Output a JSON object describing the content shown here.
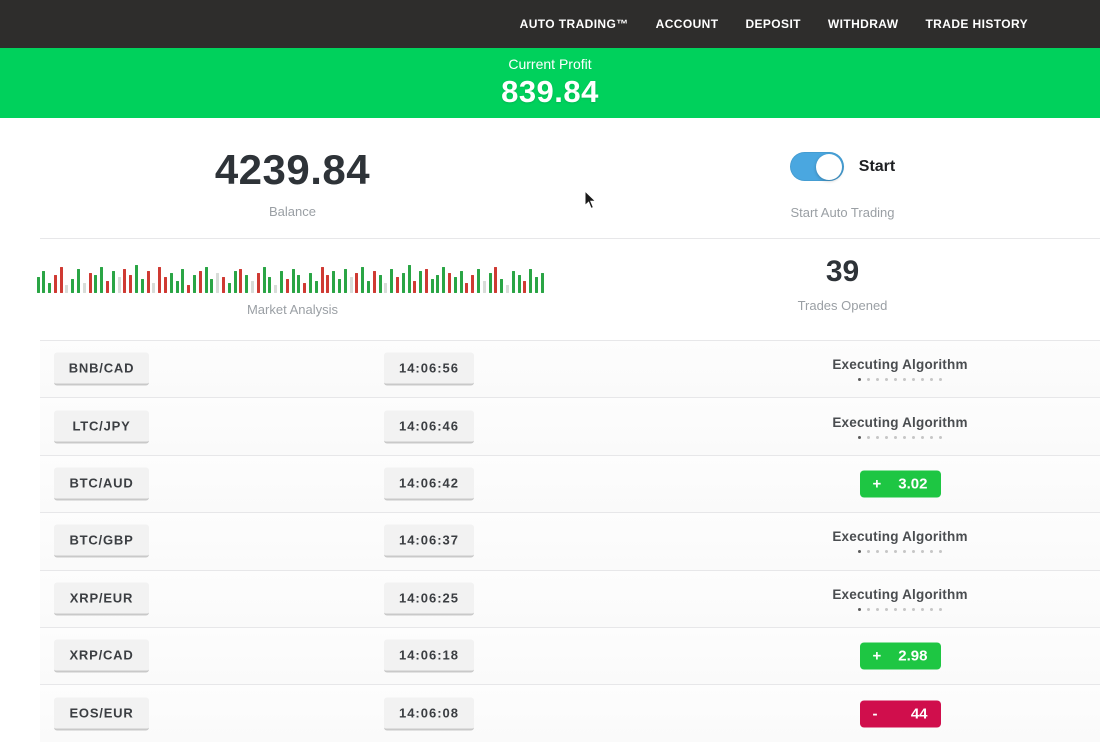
{
  "nav": {
    "items": [
      {
        "id": "auto-trading",
        "label": "AUTO TRADING™"
      },
      {
        "id": "account",
        "label": "ACCOUNT"
      },
      {
        "id": "deposit",
        "label": "DEPOSIT"
      },
      {
        "id": "withdraw",
        "label": "WITHDRAW"
      },
      {
        "id": "trade-history",
        "label": "TRADE HISTORY"
      }
    ]
  },
  "profit_banner": {
    "label": "Current Profit",
    "value": "839.84"
  },
  "stats": {
    "balance": {
      "value": "4239.84",
      "label": "Balance"
    },
    "auto_trading": {
      "toggle_on": true,
      "toggle_label": "Start",
      "label": "Start Auto Trading"
    },
    "market_analysis": {
      "label": "Market Analysis",
      "bars": [
        "g16",
        "g22",
        "g10",
        "r18",
        "r26",
        "l8",
        "g14",
        "g24",
        "l10",
        "r20",
        "g18",
        "g26",
        "r12",
        "g22",
        "l16",
        "r24",
        "r18",
        "g28",
        "g14",
        "r22",
        "l10",
        "r26",
        "r16",
        "g20",
        "g12",
        "g24",
        "r8",
        "g18",
        "r22",
        "g26",
        "g14",
        "l20",
        "r16",
        "g10",
        "g22",
        "r24",
        "g18",
        "l12",
        "r20",
        "g26",
        "g16",
        "l8",
        "g22",
        "r14",
        "g24",
        "g18",
        "r10",
        "g20",
        "g12",
        "r26",
        "r18",
        "g22",
        "g14",
        "g24",
        "l16",
        "r20",
        "g26",
        "g12",
        "r22",
        "g18",
        "l10",
        "g24",
        "r16",
        "g20",
        "g28",
        "r12",
        "g22",
        "r24",
        "g14",
        "g18",
        "g26",
        "r20",
        "g16",
        "g22",
        "r10",
        "r18",
        "g24",
        "l12",
        "g20",
        "r26",
        "g14",
        "l8",
        "g22",
        "g18",
        "r12",
        "g24",
        "g16",
        "g20"
      ]
    },
    "trades_opened": {
      "value": "39",
      "label": "Trades Opened"
    }
  },
  "trade_feed": {
    "executing_label": "Executing Algorithm",
    "executing_dots": 10,
    "rows": [
      {
        "pair": "BNB/CAD",
        "time": "14:06:56",
        "status": "executing"
      },
      {
        "pair": "LTC/JPY",
        "time": "14:06:46",
        "status": "executing"
      },
      {
        "pair": "BTC/AUD",
        "time": "14:06:42",
        "status": "profit",
        "sign": "+",
        "value": "3.02"
      },
      {
        "pair": "BTC/GBP",
        "time": "14:06:37",
        "status": "executing"
      },
      {
        "pair": "XRP/EUR",
        "time": "14:06:25",
        "status": "executing"
      },
      {
        "pair": "XRP/CAD",
        "time": "14:06:18",
        "status": "profit",
        "sign": "+",
        "value": "2.98"
      },
      {
        "pair": "EOS/EUR",
        "time": "14:06:08",
        "status": "loss",
        "sign": "-",
        "value": "44"
      }
    ]
  },
  "colors": {
    "nav-bg": "#2e2d2c",
    "banner-green": "#00d15c",
    "badge-green": "#1ec643",
    "badge-red": "#d00e4c",
    "toggle-blue": "#4aa7e0",
    "bar-green": "#2aa545",
    "bar-red": "#cf3a33"
  }
}
